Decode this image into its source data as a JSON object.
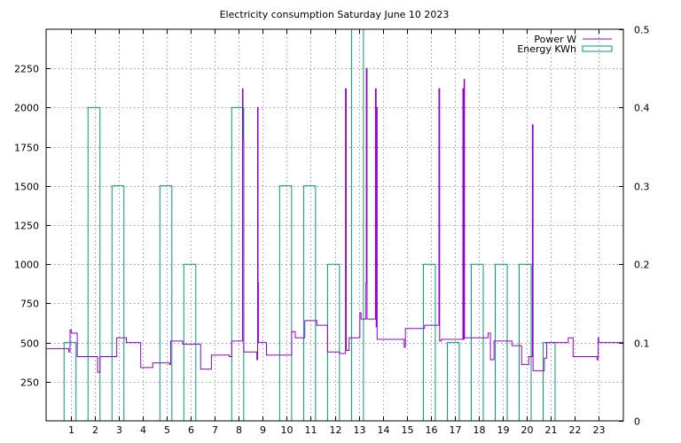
{
  "chart_data": {
    "type": "line",
    "title": "Electricity consumption Saturday June 10 2023",
    "xlabel": "",
    "ylabel": "",
    "y2label": "",
    "xlim": [
      -0.05,
      24.05
    ],
    "ylim": [
      0,
      2500
    ],
    "y2lim": [
      0,
      0.5
    ],
    "x_ticks": [
      1,
      2,
      3,
      4,
      5,
      6,
      7,
      8,
      9,
      10,
      11,
      12,
      13,
      14,
      15,
      16,
      17,
      18,
      19,
      20,
      21,
      22,
      23
    ],
    "y_ticks": [
      250,
      500,
      750,
      1000,
      1250,
      1500,
      1750,
      2000,
      2250
    ],
    "y2_ticks": [
      "0",
      "0.1",
      "0.2",
      "0.3",
      "0.4",
      "0.5"
    ],
    "grid": true,
    "legend_position": "top-right",
    "series": [
      {
        "name": "Power W",
        "color": "#9400d3",
        "style": "steps",
        "axis": "y1",
        "points": [
          [
            -0.05,
            460
          ],
          [
            0.9,
            460
          ],
          [
            0.9,
            440
          ],
          [
            0.95,
            440
          ],
          [
            0.95,
            580
          ],
          [
            1.0,
            580
          ],
          [
            1.0,
            560
          ],
          [
            1.25,
            560
          ],
          [
            1.25,
            410
          ],
          [
            2.1,
            410
          ],
          [
            2.1,
            310
          ],
          [
            2.2,
            310
          ],
          [
            2.2,
            410
          ],
          [
            2.9,
            410
          ],
          [
            2.9,
            530
          ],
          [
            3.3,
            530
          ],
          [
            3.3,
            500
          ],
          [
            3.9,
            500
          ],
          [
            3.9,
            340
          ],
          [
            4.4,
            340
          ],
          [
            4.4,
            370
          ],
          [
            5.1,
            370
          ],
          [
            5.1,
            360
          ],
          [
            5.15,
            360
          ],
          [
            5.15,
            510
          ],
          [
            5.65,
            510
          ],
          [
            5.65,
            490
          ],
          [
            6.4,
            490
          ],
          [
            6.4,
            330
          ],
          [
            6.85,
            330
          ],
          [
            6.85,
            420
          ],
          [
            7.6,
            420
          ],
          [
            7.6,
            410
          ],
          [
            7.7,
            410
          ],
          [
            7.7,
            510
          ],
          [
            8.15,
            510
          ],
          [
            8.15,
            2120
          ],
          [
            8.17,
            2120
          ],
          [
            8.17,
            1800
          ],
          [
            8.2,
            1800
          ],
          [
            8.2,
            440
          ],
          [
            8.75,
            440
          ],
          [
            8.75,
            390
          ],
          [
            8.78,
            390
          ],
          [
            8.78,
            2000
          ],
          [
            8.8,
            2000
          ],
          [
            8.8,
            880
          ],
          [
            8.82,
            880
          ],
          [
            8.82,
            500
          ],
          [
            9.15,
            500
          ],
          [
            9.15,
            420
          ],
          [
            10.2,
            420
          ],
          [
            10.2,
            570
          ],
          [
            10.35,
            570
          ],
          [
            10.35,
            530
          ],
          [
            10.75,
            530
          ],
          [
            10.75,
            640
          ],
          [
            11.25,
            640
          ],
          [
            11.25,
            610
          ],
          [
            11.7,
            610
          ],
          [
            11.7,
            440
          ],
          [
            12.2,
            440
          ],
          [
            12.2,
            430
          ],
          [
            12.45,
            430
          ],
          [
            12.45,
            2120
          ],
          [
            12.48,
            2120
          ],
          [
            12.48,
            450
          ],
          [
            12.6,
            450
          ],
          [
            12.6,
            530
          ],
          [
            13.05,
            530
          ],
          [
            13.05,
            690
          ],
          [
            13.1,
            690
          ],
          [
            13.1,
            650
          ],
          [
            13.3,
            650
          ],
          [
            13.3,
            880
          ],
          [
            13.32,
            880
          ],
          [
            13.32,
            2250
          ],
          [
            13.35,
            2250
          ],
          [
            13.35,
            650
          ],
          [
            13.7,
            650
          ],
          [
            13.7,
            2120
          ],
          [
            13.73,
            2120
          ],
          [
            13.73,
            600
          ],
          [
            13.75,
            600
          ],
          [
            13.75,
            2000
          ],
          [
            13.77,
            2000
          ],
          [
            13.77,
            520
          ],
          [
            14.9,
            520
          ],
          [
            14.9,
            470
          ],
          [
            14.95,
            470
          ],
          [
            14.95,
            590
          ],
          [
            15.75,
            590
          ],
          [
            15.75,
            610
          ],
          [
            16.35,
            610
          ],
          [
            16.35,
            2120
          ],
          [
            16.38,
            2120
          ],
          [
            16.38,
            510
          ],
          [
            16.45,
            510
          ],
          [
            16.45,
            520
          ],
          [
            17.35,
            520
          ],
          [
            17.35,
            2120
          ],
          [
            17.37,
            2120
          ],
          [
            17.37,
            520
          ],
          [
            17.4,
            520
          ],
          [
            17.4,
            2180
          ],
          [
            17.42,
            2180
          ],
          [
            17.42,
            530
          ],
          [
            18.4,
            530
          ],
          [
            18.4,
            560
          ],
          [
            18.5,
            560
          ],
          [
            18.5,
            390
          ],
          [
            18.65,
            390
          ],
          [
            18.65,
            510
          ],
          [
            19.4,
            510
          ],
          [
            19.4,
            480
          ],
          [
            19.8,
            480
          ],
          [
            19.8,
            360
          ],
          [
            20.1,
            360
          ],
          [
            20.1,
            410
          ],
          [
            20.25,
            410
          ],
          [
            20.25,
            1890
          ],
          [
            20.28,
            1890
          ],
          [
            20.28,
            320
          ],
          [
            20.75,
            320
          ],
          [
            20.75,
            400
          ],
          [
            20.85,
            400
          ],
          [
            20.85,
            500
          ],
          [
            21.75,
            500
          ],
          [
            21.75,
            530
          ],
          [
            21.95,
            530
          ],
          [
            21.95,
            410
          ],
          [
            22.95,
            410
          ],
          [
            22.95,
            390
          ],
          [
            23.0,
            390
          ],
          [
            23.0,
            530
          ],
          [
            23.02,
            530
          ],
          [
            23.02,
            500
          ],
          [
            24.05,
            500
          ]
        ]
      },
      {
        "name": "Energy KWh",
        "color": "#009e73",
        "style": "fsteps-outline",
        "axis": "y2",
        "bars": [
          [
            0.7,
            1.2,
            0.1
          ],
          [
            1.7,
            2.2,
            0.4
          ],
          [
            2.7,
            3.2,
            0.3
          ],
          [
            4.7,
            5.2,
            0.3
          ],
          [
            5.7,
            6.2,
            0.2
          ],
          [
            7.7,
            8.2,
            0.4
          ],
          [
            9.7,
            10.2,
            0.3
          ],
          [
            10.7,
            11.2,
            0.3
          ],
          [
            11.7,
            12.2,
            0.2
          ],
          [
            12.7,
            13.2,
            0.5
          ],
          [
            15.7,
            16.2,
            0.2
          ],
          [
            16.7,
            17.2,
            0.1
          ],
          [
            17.7,
            18.2,
            0.2
          ],
          [
            18.7,
            19.2,
            0.2
          ],
          [
            19.7,
            20.2,
            0.2
          ],
          [
            20.7,
            21.2,
            0.1
          ]
        ]
      }
    ]
  }
}
